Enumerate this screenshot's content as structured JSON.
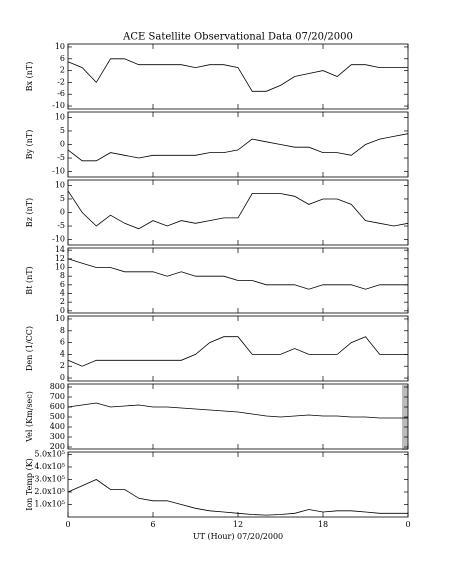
{
  "chart_data": [
    {
      "type": "line",
      "title": "ACE Satellite Observational Data   07/20/2000",
      "ylabel": "Bx (nT)",
      "color": "#000000",
      "grid": false,
      "x": [
        0,
        1,
        2,
        3,
        4,
        5,
        6,
        7,
        8,
        9,
        10,
        11,
        12,
        13,
        14,
        15,
        16,
        17,
        18,
        19,
        20,
        21,
        22,
        23,
        24
      ],
      "values": [
        5,
        3,
        -2,
        6,
        6,
        4,
        4,
        4,
        4,
        3,
        4,
        4,
        3,
        -5,
        -5,
        -3,
        0,
        1,
        2,
        0,
        4,
        4,
        3,
        3,
        3
      ],
      "xlim": [
        0,
        24
      ],
      "ylim": [
        -11,
        11
      ],
      "yticks": [
        10,
        6,
        2,
        -2,
        -6,
        -10
      ]
    },
    {
      "type": "line",
      "ylabel": "By (nT)",
      "color": "#000000",
      "grid": false,
      "x": [
        0,
        1,
        2,
        3,
        4,
        5,
        6,
        7,
        8,
        9,
        10,
        11,
        12,
        13,
        14,
        15,
        16,
        17,
        18,
        19,
        20,
        21,
        22,
        23,
        24
      ],
      "values": [
        -2,
        -6,
        -6,
        -3,
        -4,
        -5,
        -4,
        -4,
        -4,
        -4,
        -3,
        -3,
        -2,
        2,
        1,
        0,
        -1,
        -1,
        -3,
        -3,
        -4,
        0,
        2,
        3,
        4
      ],
      "xlim": [
        0,
        24
      ],
      "ylim": [
        -12,
        12
      ],
      "yticks": [
        10,
        5,
        0,
        -5,
        -10
      ]
    },
    {
      "type": "line",
      "ylabel": "Bz (nT)",
      "color": "#000000",
      "grid": false,
      "x": [
        0,
        1,
        2,
        3,
        4,
        5,
        6,
        7,
        8,
        9,
        10,
        11,
        12,
        13,
        14,
        15,
        16,
        17,
        18,
        19,
        20,
        21,
        22,
        23,
        24
      ],
      "values": [
        8,
        0,
        -5,
        -1,
        -4,
        -6,
        -3,
        -5,
        -3,
        -4,
        -3,
        -2,
        -2,
        7,
        7,
        7,
        6,
        3,
        5,
        5,
        3,
        -3,
        -4,
        -5,
        -4
      ],
      "xlim": [
        0,
        24
      ],
      "ylim": [
        -12,
        12
      ],
      "yticks": [
        10,
        5,
        0,
        -5,
        -10
      ]
    },
    {
      "type": "line",
      "ylabel": "Bt (nT)",
      "color": "#000000",
      "grid": false,
      "x": [
        0,
        1,
        2,
        3,
        4,
        5,
        6,
        7,
        8,
        9,
        10,
        11,
        12,
        13,
        14,
        15,
        16,
        17,
        18,
        19,
        20,
        21,
        22,
        23,
        24
      ],
      "values": [
        12,
        11,
        10,
        10,
        9,
        9,
        9,
        8,
        9,
        8,
        8,
        8,
        7,
        7,
        6,
        6,
        6,
        5,
        6,
        6,
        6,
        5,
        6,
        6,
        6
      ],
      "xlim": [
        0,
        24
      ],
      "ylim": [
        -0.5,
        14.5
      ],
      "yticks": [
        14,
        12,
        10,
        8,
        6,
        4,
        2,
        0
      ]
    },
    {
      "type": "line",
      "ylabel": "Den (1/CC)",
      "color": "#000000",
      "grid": false,
      "x": [
        0,
        1,
        2,
        3,
        4,
        5,
        6,
        7,
        8,
        9,
        10,
        11,
        12,
        13,
        14,
        15,
        16,
        17,
        18,
        19,
        20,
        21,
        22,
        23,
        24
      ],
      "values": [
        3,
        2,
        3,
        3,
        3,
        3,
        3,
        3,
        3,
        4,
        6,
        7,
        7,
        4,
        4,
        4,
        5,
        4,
        4,
        4,
        6,
        7,
        4,
        4,
        4
      ],
      "xlim": [
        0,
        24
      ],
      "ylim": [
        -0.5,
        10.5
      ],
      "yticks": [
        10,
        8,
        6,
        4,
        2,
        0
      ]
    },
    {
      "type": "line",
      "ylabel": "Vel (Km/sec)",
      "color": "#000000",
      "grid": false,
      "x": [
        0,
        1,
        2,
        3,
        4,
        5,
        6,
        7,
        8,
        9,
        10,
        11,
        12,
        13,
        14,
        15,
        16,
        17,
        18,
        19,
        20,
        21,
        22,
        23,
        24
      ],
      "values": [
        600,
        620,
        640,
        600,
        610,
        620,
        600,
        600,
        590,
        580,
        570,
        560,
        550,
        530,
        510,
        500,
        510,
        520,
        510,
        510,
        500,
        500,
        490,
        490,
        490
      ],
      "xlim": [
        0,
        24
      ],
      "ylim": [
        180,
        830
      ],
      "yticks": [
        800,
        700,
        600,
        500,
        400,
        300,
        200
      ]
    },
    {
      "type": "line",
      "ylabel": "Ion Temp (K)",
      "color": "#000000",
      "grid": false,
      "x": [
        0,
        1,
        2,
        3,
        4,
        5,
        6,
        7,
        8,
        9,
        10,
        11,
        12,
        13,
        14,
        15,
        16,
        17,
        18,
        19,
        20,
        21,
        22,
        23,
        24
      ],
      "values": [
        200000,
        250000,
        300000,
        220000,
        220000,
        150000,
        130000,
        130000,
        100000,
        70000,
        50000,
        40000,
        30000,
        20000,
        15000,
        20000,
        30000,
        60000,
        40000,
        50000,
        50000,
        40000,
        30000,
        30000,
        30000
      ],
      "xlim": [
        0,
        24
      ],
      "ylim": [
        0,
        520000
      ],
      "yticks": [
        {
          "value": 500000,
          "label": "5.0x10⁵"
        },
        {
          "value": 400000,
          "label": "4.0x10⁵"
        },
        {
          "value": 300000,
          "label": "3.0x10⁵"
        },
        {
          "value": 200000,
          "label": "2.0x10⁵"
        },
        {
          "value": 100000,
          "label": "1.0x10⁵"
        }
      ],
      "xticks": [
        0,
        6,
        12,
        18,
        {
          "value": 24,
          "label": "0"
        }
      ],
      "xlabel": "UT (Hour)  07/20/2000"
    }
  ]
}
